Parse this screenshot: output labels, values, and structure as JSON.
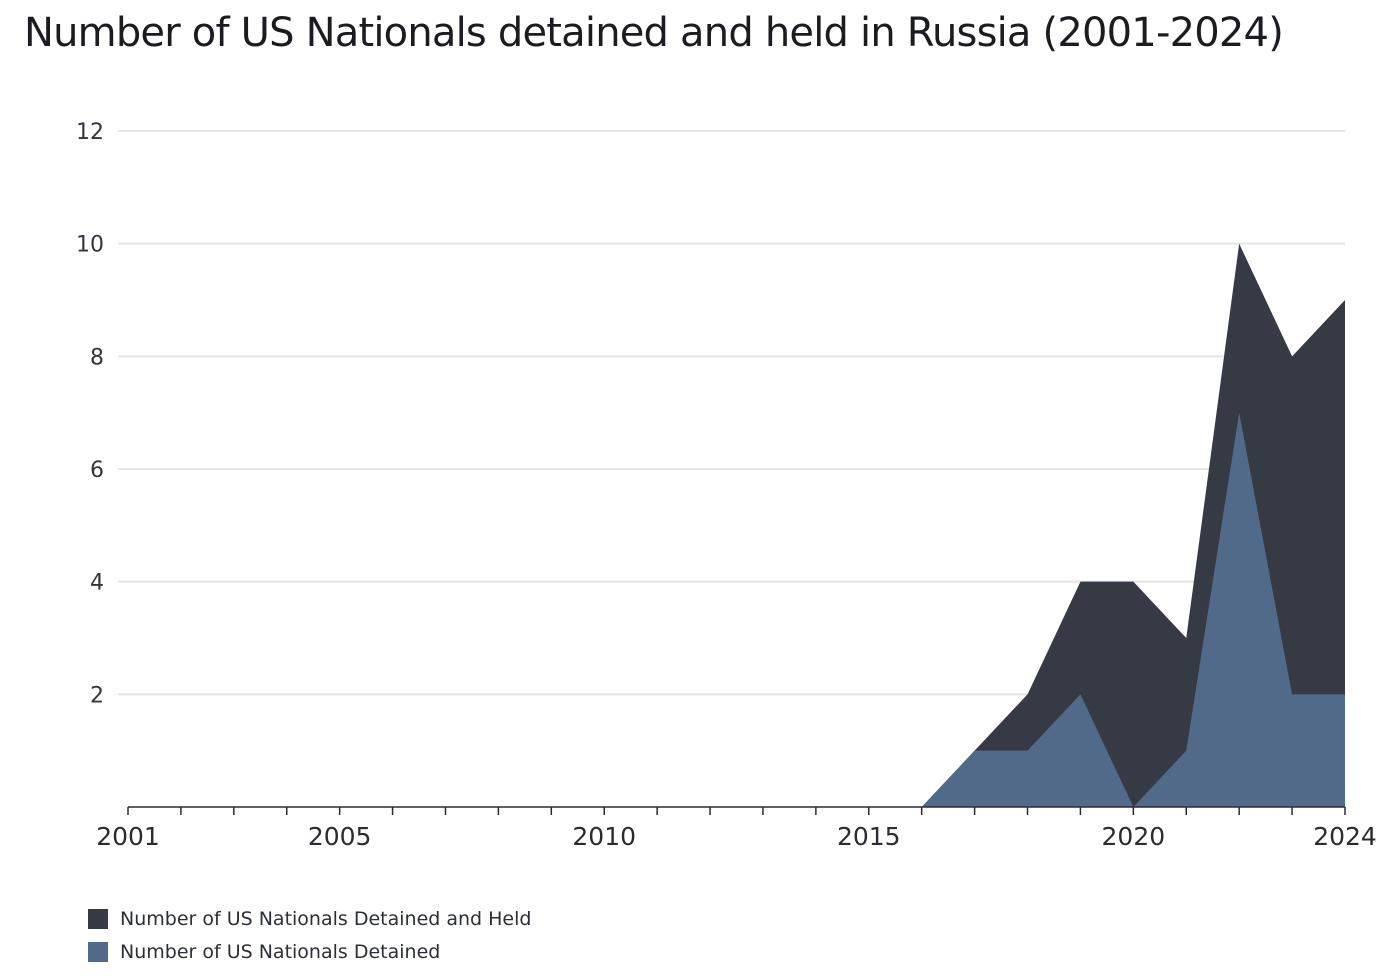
{
  "chart_data": {
    "type": "area",
    "title": "Number of US Nationals detained and held in Russia (2001-2024)",
    "xlabel": "",
    "ylabel": "",
    "x": [
      2001,
      2002,
      2003,
      2004,
      2005,
      2006,
      2007,
      2008,
      2009,
      2010,
      2011,
      2012,
      2013,
      2014,
      2015,
      2016,
      2017,
      2018,
      2019,
      2020,
      2021,
      2022,
      2023,
      2024
    ],
    "x_tick_labels": [
      "2001",
      "2005",
      "2010",
      "2015",
      "2020",
      "2024"
    ],
    "y_tick_labels": [
      "2",
      "4",
      "6",
      "8",
      "10",
      "12"
    ],
    "ylim": [
      0,
      12
    ],
    "grid": true,
    "legend_position": "bottom-left",
    "series": [
      {
        "name": "Number of US Nationals Detained and Held",
        "color": "#363a45",
        "values": [
          0,
          0,
          0,
          0,
          0,
          0,
          0,
          0,
          0,
          0,
          0,
          0,
          0,
          0,
          0,
          0,
          1,
          2,
          4,
          4,
          3,
          10,
          8,
          9
        ]
      },
      {
        "name": "Number of US Nationals Detained",
        "color": "#526a8a",
        "values": [
          0,
          0,
          0,
          0,
          0,
          0,
          0,
          0,
          0,
          0,
          0,
          0,
          0,
          0,
          0,
          0,
          1,
          1,
          2,
          0,
          1,
          7,
          2,
          2
        ]
      }
    ]
  }
}
